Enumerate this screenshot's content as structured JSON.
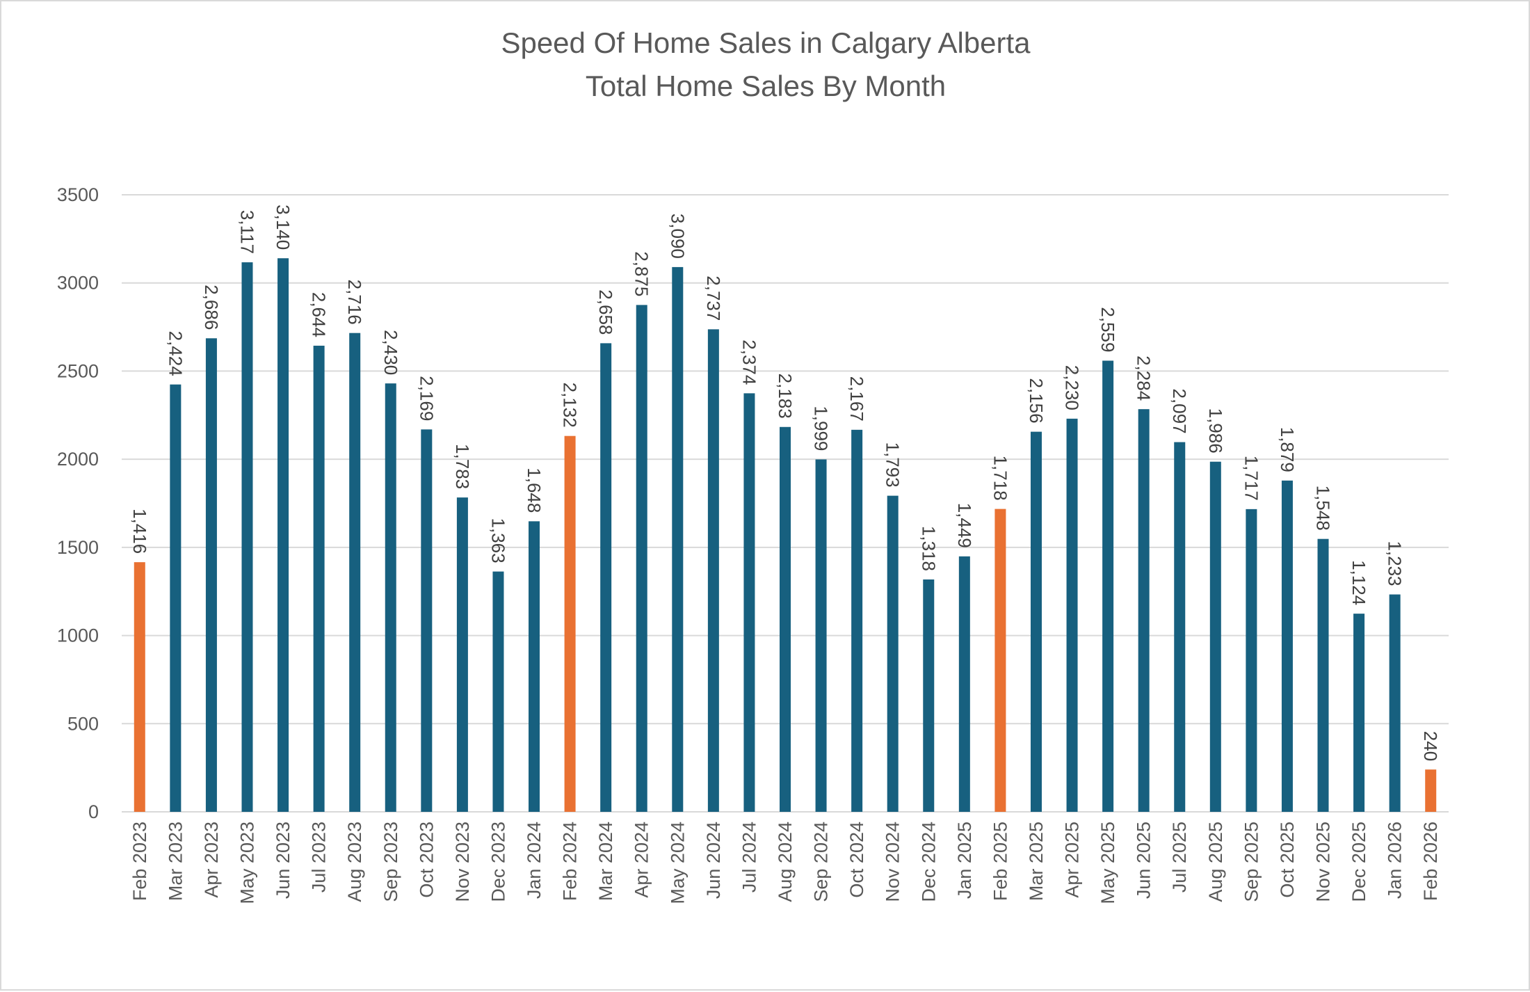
{
  "chart_data": {
    "type": "bar",
    "title": "Speed Of Home Sales in Calgary Alberta",
    "subtitle": "Total Home Sales By Month",
    "xlabel": "",
    "ylabel": "",
    "ylim": [
      0,
      3500
    ],
    "yticks": [
      0,
      500,
      1000,
      1500,
      2000,
      2500,
      3000,
      3500
    ],
    "grid": true,
    "legend": "none",
    "categories": [
      "Feb 2023",
      "Mar 2023",
      "Apr 2023",
      "May 2023",
      "Jun 2023",
      "Jul 2023",
      "Aug 2023",
      "Sep 2023",
      "Oct 2023",
      "Nov 2023",
      "Dec 2023",
      "Jan 2024",
      "Feb 2024",
      "Mar 2024",
      "Apr 2024",
      "May 2024",
      "Jun 2024",
      "Jul 2024",
      "Aug 2024",
      "Sep 2024",
      "Oct 2024",
      "Nov 2024",
      "Dec 2024",
      "Jan 2025",
      "Feb 2025",
      "Mar 2025",
      "Apr 2025",
      "May 2025",
      "Jun 2025",
      "Jul 2025",
      "Aug 2025",
      "Sep 2025",
      "Oct 2025",
      "Nov 2025",
      "Dec 2025",
      "Jan 2026",
      "Feb 2026"
    ],
    "values": [
      1416,
      2424,
      2686,
      3117,
      3140,
      2644,
      2716,
      2430,
      2169,
      1783,
      1363,
      1648,
      2132,
      2658,
      2875,
      3090,
      2737,
      2374,
      2183,
      1999,
      2167,
      1793,
      1318,
      1449,
      1718,
      2156,
      2230,
      2559,
      2284,
      2097,
      1986,
      1717,
      1879,
      1548,
      1124,
      1233,
      240
    ],
    "highlighted": [
      "Feb 2023",
      "Feb 2024",
      "Feb 2025",
      "Feb 2026"
    ],
    "colors": {
      "default": "#17607f",
      "highlight": "#e97132",
      "grid": "#d9d9d9"
    }
  }
}
